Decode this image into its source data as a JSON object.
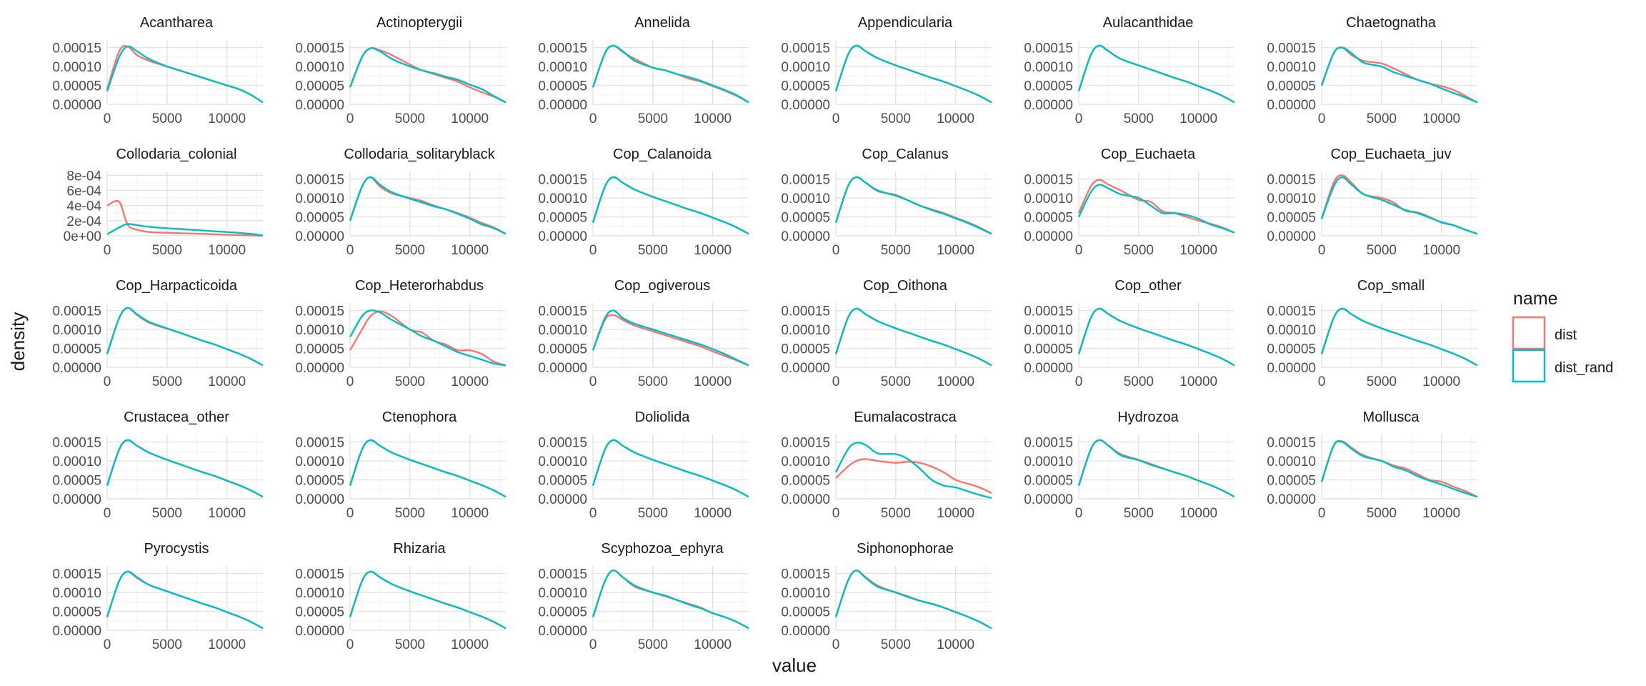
{
  "axis": {
    "xlabel": "value",
    "ylabel": "density",
    "x_ticks": [
      0,
      5000,
      10000
    ],
    "x_tick_labels": [
      "0",
      "5000",
      "10000"
    ],
    "xlim": [
      0,
      13000
    ],
    "y_ticks": [
      0,
      5e-05,
      0.0001,
      0.00015
    ],
    "y_tick_labels": [
      "0.00000",
      "0.00005",
      "0.00010",
      "0.00015"
    ],
    "ylim": [
      0,
      0.00017
    ],
    "colloid_y_ticks": [
      0,
      0.0002,
      0.0004,
      0.0006,
      0.0008
    ],
    "colloid_y_tick_labels": [
      "0e+00",
      "2e-04",
      "4e-04",
      "6e-04",
      "8e-04"
    ],
    "colloid_ylim": [
      0,
      0.00085
    ],
    "grid": true
  },
  "legend": {
    "title": "name",
    "placement": "right",
    "items": [
      {
        "label": "dist",
        "color": "#F8766D"
      },
      {
        "label": "dist_rand",
        "color": "#00BFC4"
      }
    ]
  },
  "chart_data": {
    "type": "line",
    "facet_titles": [
      "Acantharea",
      "Actinopterygii",
      "Annelida",
      "Appendicularia",
      "Aulacanthidae",
      "Chaetognatha",
      "Collodaria_colonial",
      "Collodaria_solitaryblack",
      "Cop_Calanoida",
      "Cop_Calanus",
      "Cop_Euchaeta",
      "Cop_Euchaeta_juv",
      "Cop_Harpacticoida",
      "Cop_Heterorhabdus",
      "Cop_ogiverous",
      "Cop_Oithona",
      "Cop_other",
      "Cop_small",
      "Crustacea_other",
      "Ctenophora",
      "Doliolida",
      "Eumalacostraca",
      "Hydrozoa",
      "Mollusca",
      "Pyrocystis",
      "Rhizaria",
      "Scyphozoa_ephyra",
      "Siphonophorae"
    ],
    "x": [
      0,
      1000,
      1700,
      2500,
      3500,
      5000,
      6000,
      7000,
      8000,
      9000,
      10000,
      11000,
      12000,
      13000
    ],
    "series_names": [
      "dist",
      "dist_rand"
    ],
    "panels": [
      {
        "dist": [
          4e-05,
          0.00014,
          0.000153,
          0.00013,
          0.000115,
          0.0001,
          9e-05,
          8e-05,
          7e-05,
          6e-05,
          5e-05,
          4e-05,
          2.5e-05,
          5e-06
        ],
        "dist_rand": [
          3.5e-05,
          0.000125,
          0.000153,
          0.00014,
          0.00012,
          0.0001,
          9e-05,
          8e-05,
          7e-05,
          6e-05,
          5e-05,
          4e-05,
          2.5e-05,
          5e-06
        ]
      },
      {
        "dist": [
          4.5e-05,
          0.000125,
          0.000148,
          0.000143,
          0.00013,
          0.000105,
          9e-05,
          8e-05,
          7e-05,
          6e-05,
          4.5e-05,
          3.2e-05,
          2e-05,
          5e-06
        ],
        "dist_rand": [
          4.5e-05,
          0.000125,
          0.000148,
          0.00014,
          0.00012,
          0.0001,
          9e-05,
          8.2e-05,
          7.3e-05,
          6.5e-05,
          5.2e-05,
          4e-05,
          2.2e-05,
          5e-06
        ]
      },
      {
        "dist": [
          4.5e-05,
          0.000135,
          0.000155,
          0.000138,
          0.00012,
          9.7e-05,
          9e-05,
          8e-05,
          6.8e-05,
          6e-05,
          4.8e-05,
          3.6e-05,
          2.2e-05,
          5e-06
        ],
        "dist_rand": [
          4.5e-05,
          0.000135,
          0.000155,
          0.00014,
          0.000115,
          9.7e-05,
          9e-05,
          8e-05,
          7.2e-05,
          6.2e-05,
          5e-05,
          3.8e-05,
          2.4e-05,
          5e-06
        ]
      },
      {
        "dist": [
          3.5e-05,
          0.00013,
          0.000155,
          0.00014,
          0.000122,
          0.000103,
          9.2e-05,
          8.1e-05,
          7e-05,
          6e-05,
          4.8e-05,
          3.6e-05,
          2.2e-05,
          5e-06
        ],
        "dist_rand": [
          3.5e-05,
          0.00013,
          0.000155,
          0.00014,
          0.000122,
          0.000103,
          9.2e-05,
          8.1e-05,
          7e-05,
          6e-05,
          4.8e-05,
          3.6e-05,
          2.2e-05,
          5e-06
        ]
      },
      {
        "dist": [
          3.5e-05,
          0.00013,
          0.000155,
          0.00014,
          0.00012,
          0.000103,
          9.2e-05,
          8.1e-05,
          7e-05,
          6e-05,
          4.8e-05,
          3.6e-05,
          2.2e-05,
          5e-06
        ],
        "dist_rand": [
          3.5e-05,
          0.00013,
          0.000155,
          0.00014,
          0.00012,
          0.000103,
          9.2e-05,
          8.1e-05,
          7e-05,
          6e-05,
          4.8e-05,
          3.6e-05,
          2.2e-05,
          5e-06
        ]
      },
      {
        "dist": [
          5e-05,
          0.000135,
          0.00015,
          0.00013,
          0.000115,
          0.000108,
          9.5e-05,
          8e-05,
          6.5e-05,
          5.5e-05,
          4.8e-05,
          3.8e-05,
          2.2e-05,
          5e-06
        ],
        "dist_rand": [
          5e-05,
          0.000135,
          0.00015,
          0.000135,
          0.00011,
          0.0001,
          8.5e-05,
          7.5e-05,
          6.5e-05,
          5.5e-05,
          4.2e-05,
          3e-05,
          1.8e-05,
          5e-06
        ]
      },
      {
        "dist": [
          0.0004,
          0.00045,
          0.00015,
          8e-05,
          5e-05,
          4e-05,
          3.5e-05,
          3e-05,
          2.5e-05,
          2e-05,
          1.5e-05,
          1e-05,
          6e-06,
          2e-06
        ],
        "dist_rand": [
          2e-05,
          0.00011,
          0.000155,
          0.00014,
          0.00012,
          0.0001,
          9e-05,
          8e-05,
          7e-05,
          6e-05,
          5e-05,
          4e-05,
          2.5e-05,
          5e-06
        ]
      },
      {
        "dist": [
          4e-05,
          0.00013,
          0.000155,
          0.00013,
          0.000112,
          0.0001,
          9.2e-05,
          8e-05,
          7e-05,
          6e-05,
          4.8e-05,
          3.4e-05,
          2.2e-05,
          5e-06
        ],
        "dist_rand": [
          4e-05,
          0.00013,
          0.000155,
          0.000135,
          0.000115,
          9.8e-05,
          8.8e-05,
          7.8e-05,
          7e-05,
          5.8e-05,
          4.5e-05,
          3e-05,
          2e-05,
          5e-06
        ]
      },
      {
        "dist": [
          3.5e-05,
          0.00013,
          0.000155,
          0.00014,
          0.000122,
          0.000103,
          9.2e-05,
          8.1e-05,
          7e-05,
          6e-05,
          4.8e-05,
          3.6e-05,
          2.2e-05,
          5e-06
        ],
        "dist_rand": [
          3.5e-05,
          0.00013,
          0.000155,
          0.00014,
          0.000122,
          0.000103,
          9.2e-05,
          8.1e-05,
          7e-05,
          6e-05,
          4.8e-05,
          3.6e-05,
          2.2e-05,
          5e-06
        ]
      },
      {
        "dist": [
          3.5e-05,
          0.00013,
          0.000155,
          0.00014,
          0.000118,
          0.000108,
          9.4e-05,
          8e-05,
          7e-05,
          6e-05,
          4.8e-05,
          3.6e-05,
          2.2e-05,
          5e-06
        ],
        "dist_rand": [
          3.5e-05,
          0.00013,
          0.000155,
          0.00014,
          0.00012,
          0.000106,
          9.4e-05,
          8e-05,
          6.8e-05,
          5.8e-05,
          4.6e-05,
          3.4e-05,
          2e-05,
          5e-06
        ]
      },
      {
        "dist": [
          6e-05,
          0.00013,
          0.000148,
          0.000135,
          0.00012,
          9.5e-05,
          9e-05,
          6.5e-05,
          6e-05,
          5e-05,
          4e-05,
          3.2e-05,
          2.2e-05,
          8e-06
        ],
        "dist_rand": [
          5e-05,
          0.000115,
          0.000135,
          0.000125,
          0.00011,
          0.0001,
          8e-05,
          6e-05,
          6e-05,
          5.5e-05,
          4.5e-05,
          3e-05,
          2e-05,
          8e-06
        ]
      },
      {
        "dist": [
          4.5e-05,
          0.00014,
          0.00016,
          0.00014,
          0.00011,
          0.0001,
          8.8e-05,
          6.6e-05,
          6.2e-05,
          5e-05,
          3.5e-05,
          2.8e-05,
          1.6e-05,
          5e-06
        ],
        "dist_rand": [
          4.5e-05,
          0.00013,
          0.000155,
          0.000135,
          0.00011,
          9.5e-05,
          8.2e-05,
          6.8e-05,
          6e-05,
          4.8e-05,
          3.6e-05,
          2.8e-05,
          1.6e-05,
          5e-06
        ]
      },
      {
        "dist": [
          3.5e-05,
          0.00013,
          0.000157,
          0.000138,
          0.000118,
          0.000102,
          9.2e-05,
          8.1e-05,
          7e-05,
          6e-05,
          4.8e-05,
          3.6e-05,
          2.2e-05,
          5e-06
        ],
        "dist_rand": [
          3.5e-05,
          0.00013,
          0.000157,
          0.00014,
          0.00012,
          0.000103,
          9.2e-05,
          8.1e-05,
          7e-05,
          6e-05,
          4.8e-05,
          3.6e-05,
          2.2e-05,
          5e-06
        ]
      },
      {
        "dist": [
          4.5e-05,
          0.0001,
          0.000135,
          0.000148,
          0.000135,
          0.0001,
          9.2e-05,
          7e-05,
          6e-05,
          4.5e-05,
          4.5e-05,
          3.5e-05,
          1.5e-05,
          5e-06
        ],
        "dist_rand": [
          8e-05,
          0.000135,
          0.00015,
          0.000145,
          0.000125,
          0.0001,
          8.2e-05,
          7e-05,
          5.5e-05,
          4e-05,
          3e-05,
          2e-05,
          1e-05,
          5e-06
        ]
      },
      {
        "dist": [
          4.5e-05,
          0.000125,
          0.000138,
          0.000125,
          0.00011,
          9.5e-05,
          8.5e-05,
          7.5e-05,
          6.5e-05,
          5.5e-05,
          4.2e-05,
          3e-05,
          1.8e-05,
          5e-06
        ],
        "dist_rand": [
          4.5e-05,
          0.00013,
          0.00015,
          0.00013,
          0.000115,
          0.0001,
          9e-05,
          8e-05,
          7e-05,
          6e-05,
          4.8e-05,
          3.5e-05,
          2e-05,
          5e-06
        ]
      },
      {
        "dist": [
          3.5e-05,
          0.00013,
          0.000155,
          0.00014,
          0.000122,
          0.000103,
          9.2e-05,
          8.1e-05,
          7e-05,
          6e-05,
          4.8e-05,
          3.6e-05,
          2.2e-05,
          5e-06
        ],
        "dist_rand": [
          3.5e-05,
          0.00013,
          0.000155,
          0.00014,
          0.000122,
          0.000103,
          9.2e-05,
          8.1e-05,
          7e-05,
          6e-05,
          4.8e-05,
          3.6e-05,
          2.2e-05,
          5e-06
        ]
      },
      {
        "dist": [
          3.5e-05,
          0.00013,
          0.000155,
          0.00014,
          0.000122,
          0.000103,
          9.2e-05,
          8.1e-05,
          7e-05,
          6e-05,
          4.8e-05,
          3.6e-05,
          2.2e-05,
          5e-06
        ],
        "dist_rand": [
          3.5e-05,
          0.00013,
          0.000155,
          0.00014,
          0.000122,
          0.000103,
          9.2e-05,
          8.1e-05,
          7e-05,
          6e-05,
          4.8e-05,
          3.6e-05,
          2.2e-05,
          5e-06
        ]
      },
      {
        "dist": [
          3.5e-05,
          0.00013,
          0.000155,
          0.00014,
          0.000122,
          0.000103,
          9.2e-05,
          8.1e-05,
          7e-05,
          6e-05,
          4.8e-05,
          3.6e-05,
          2.2e-05,
          5e-06
        ],
        "dist_rand": [
          3.5e-05,
          0.00013,
          0.000155,
          0.00014,
          0.000122,
          0.000103,
          9.2e-05,
          8.1e-05,
          7e-05,
          6e-05,
          4.8e-05,
          3.6e-05,
          2.2e-05,
          5e-06
        ]
      },
      {
        "dist": [
          3.5e-05,
          0.00013,
          0.000155,
          0.00014,
          0.000122,
          0.000103,
          9.2e-05,
          8.1e-05,
          7e-05,
          6e-05,
          4.8e-05,
          3.6e-05,
          2.2e-05,
          5e-06
        ],
        "dist_rand": [
          3.5e-05,
          0.00013,
          0.000155,
          0.00014,
          0.000122,
          0.000103,
          9.2e-05,
          8.1e-05,
          7e-05,
          6e-05,
          4.8e-05,
          3.6e-05,
          2.2e-05,
          5e-06
        ]
      },
      {
        "dist": [
          3.5e-05,
          0.00013,
          0.000155,
          0.00014,
          0.000122,
          0.000103,
          9.2e-05,
          8.1e-05,
          7e-05,
          6e-05,
          4.8e-05,
          3.6e-05,
          2.2e-05,
          5e-06
        ],
        "dist_rand": [
          3.5e-05,
          0.00013,
          0.000155,
          0.00014,
          0.000122,
          0.000103,
          9.2e-05,
          8.1e-05,
          7e-05,
          6e-05,
          4.8e-05,
          3.6e-05,
          2.2e-05,
          5e-06
        ]
      },
      {
        "dist": [
          3.5e-05,
          0.00013,
          0.000155,
          0.00014,
          0.000122,
          0.000103,
          9.2e-05,
          8.1e-05,
          7e-05,
          6e-05,
          4.8e-05,
          3.6e-05,
          2.2e-05,
          5e-06
        ],
        "dist_rand": [
          3.5e-05,
          0.00013,
          0.000155,
          0.00014,
          0.000122,
          0.000103,
          9.2e-05,
          8.1e-05,
          7e-05,
          6e-05,
          4.8e-05,
          3.6e-05,
          2.2e-05,
          5e-06
        ]
      },
      {
        "dist": [
          5.5e-05,
          8.5e-05,
          0.0001,
          0.000105,
          0.0001,
          9.5e-05,
          9.8e-05,
          9.5e-05,
          8.5e-05,
          7e-05,
          5e-05,
          4e-05,
          3e-05,
          1.5e-05
        ],
        "dist_rand": [
          7e-05,
          0.00013,
          0.000148,
          0.000142,
          0.00012,
          0.000118,
          0.000105,
          8e-05,
          5e-05,
          3.5e-05,
          3e-05,
          2e-05,
          1e-05,
          2e-06
        ]
      },
      {
        "dist": [
          3.5e-05,
          0.00013,
          0.000155,
          0.00014,
          0.000118,
          0.000103,
          9.2e-05,
          8.1e-05,
          7e-05,
          6e-05,
          4.8e-05,
          3.6e-05,
          2.2e-05,
          5e-06
        ],
        "dist_rand": [
          3.5e-05,
          0.00013,
          0.000155,
          0.00014,
          0.000115,
          0.000102,
          9e-05,
          8e-05,
          7e-05,
          6e-05,
          4.8e-05,
          3.6e-05,
          2.2e-05,
          5e-06
        ]
      },
      {
        "dist": [
          4.5e-05,
          0.00014,
          0.000152,
          0.000135,
          0.000115,
          0.0001,
          8.8e-05,
          8e-05,
          6.5e-05,
          5e-05,
          4.5e-05,
          3.2e-05,
          2e-05,
          5e-06
        ],
        "dist_rand": [
          4.5e-05,
          0.00014,
          0.00015,
          0.000132,
          0.000112,
          0.0001,
          8.5e-05,
          7.5e-05,
          6e-05,
          4.8e-05,
          3.8e-05,
          2.6e-05,
          1.5e-05,
          5e-06
        ]
      },
      {
        "dist": [
          3.5e-05,
          0.00013,
          0.000155,
          0.000138,
          0.00012,
          0.000103,
          9.2e-05,
          8.1e-05,
          7e-05,
          6e-05,
          4.8e-05,
          3.6e-05,
          2.2e-05,
          5e-06
        ],
        "dist_rand": [
          3.5e-05,
          0.00013,
          0.000155,
          0.00014,
          0.00012,
          0.000103,
          9.2e-05,
          8.1e-05,
          7e-05,
          6e-05,
          4.8e-05,
          3.6e-05,
          2.2e-05,
          5e-06
        ]
      },
      {
        "dist": [
          3.5e-05,
          0.00013,
          0.000155,
          0.00014,
          0.000122,
          0.000103,
          9.2e-05,
          8.1e-05,
          7e-05,
          6e-05,
          4.8e-05,
          3.6e-05,
          2.2e-05,
          5e-06
        ],
        "dist_rand": [
          3.5e-05,
          0.00013,
          0.000155,
          0.00014,
          0.000122,
          0.000103,
          9.2e-05,
          8.1e-05,
          7e-05,
          6e-05,
          4.8e-05,
          3.6e-05,
          2.2e-05,
          5e-06
        ]
      },
      {
        "dist": [
          3.5e-05,
          0.00013,
          0.000158,
          0.00014,
          0.000115,
          0.0001,
          9e-05,
          8e-05,
          7e-05,
          6e-05,
          4.5e-05,
          3.5e-05,
          2.2e-05,
          5e-06
        ],
        "dist_rand": [
          3.5e-05,
          0.00013,
          0.000158,
          0.00014,
          0.000118,
          0.0001,
          9.2e-05,
          8e-05,
          6.8e-05,
          5.8e-05,
          4.5e-05,
          3.5e-05,
          2.2e-05,
          5e-06
        ]
      },
      {
        "dist": [
          3.5e-05,
          0.00013,
          0.000158,
          0.00014,
          0.000118,
          0.0001,
          9e-05,
          7.8e-05,
          7e-05,
          6e-05,
          4.8e-05,
          3.6e-05,
          2.2e-05,
          5e-06
        ],
        "dist_rand": [
          3.5e-05,
          0.00013,
          0.000158,
          0.000138,
          0.000115,
          0.0001,
          8.8e-05,
          7.8e-05,
          7e-05,
          6e-05,
          4.8e-05,
          3.6e-05,
          2.2e-05,
          5e-06
        ]
      }
    ]
  }
}
